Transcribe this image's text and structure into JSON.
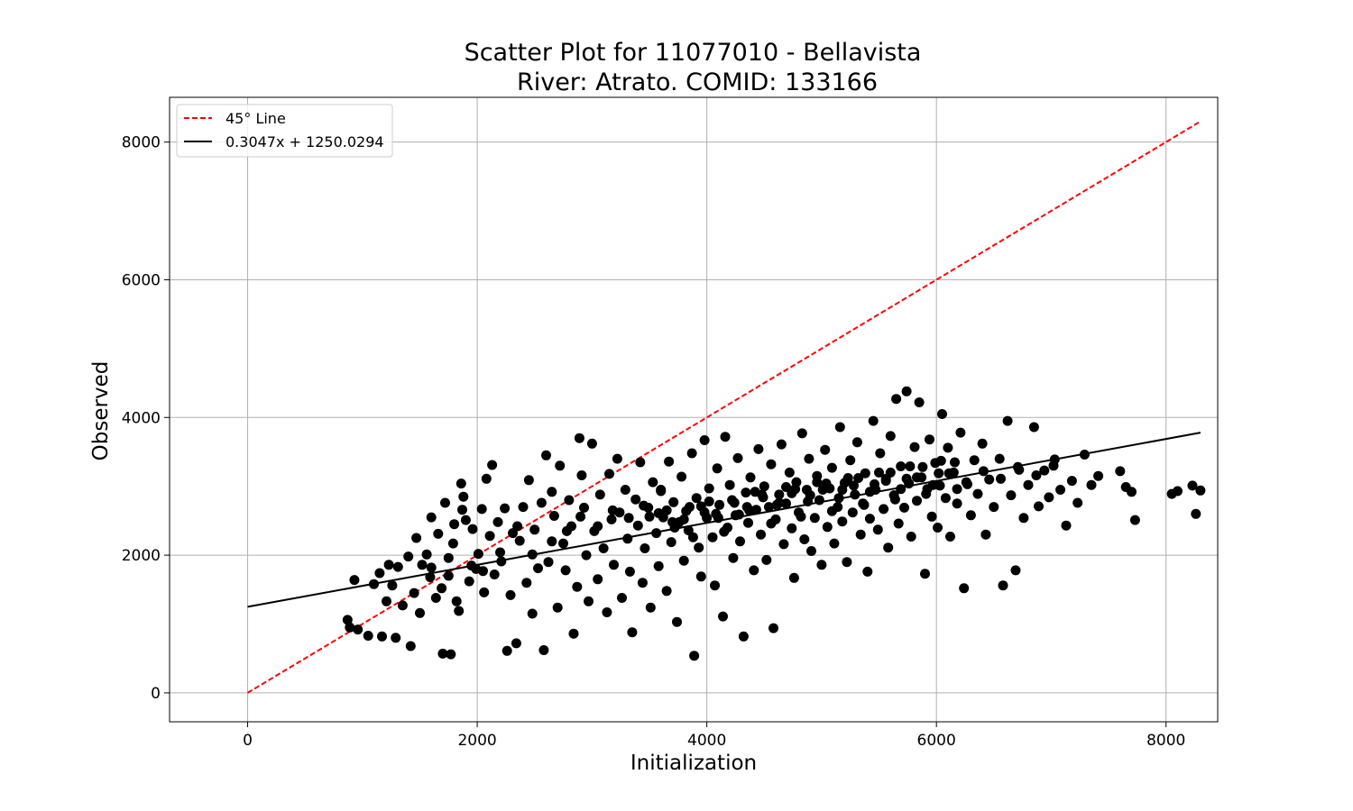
{
  "chart_data": {
    "type": "scatter",
    "title_line1": "Scatter Plot for 11077010 - Bellavista",
    "title_line2": "River: Atrato. COMID: 133166",
    "xlabel": "Initialization",
    "ylabel": "Observed",
    "xlim": [
      -680,
      8450
    ],
    "ylim": [
      -420,
      8650
    ],
    "xticks": [
      0,
      2000,
      4000,
      6000,
      8000
    ],
    "yticks": [
      0,
      2000,
      4000,
      6000,
      8000
    ],
    "xtick_labels": [
      "0",
      "2000",
      "4000",
      "6000",
      "8000"
    ],
    "ytick_labels": [
      "0",
      "2000",
      "4000",
      "6000",
      "8000"
    ],
    "grid": true,
    "legend_position": "top-left",
    "point_color": "#000000",
    "series": [
      {
        "name": "45° Line",
        "type": "line",
        "style": "dashed",
        "color": "#ff0000",
        "x": [
          0,
          8300
        ],
        "y": [
          0,
          8300
        ]
      },
      {
        "name": "0.3047x + 1250.0294",
        "type": "line",
        "style": "solid",
        "color": "#000000",
        "slope": 0.3047,
        "intercept": 1250.0294,
        "x": [
          0,
          8300
        ]
      }
    ],
    "points": [
      [
        870,
        1060
      ],
      [
        890,
        950
      ],
      [
        930,
        1640
      ],
      [
        960,
        920
      ],
      [
        1050,
        830
      ],
      [
        1100,
        1580
      ],
      [
        1150,
        1740
      ],
      [
        1170,
        820
      ],
      [
        1210,
        1330
      ],
      [
        1230,
        1860
      ],
      [
        1260,
        1560
      ],
      [
        1290,
        800
      ],
      [
        1310,
        1830
      ],
      [
        1350,
        1270
      ],
      [
        1400,
        1980
      ],
      [
        1420,
        680
      ],
      [
        1450,
        1450
      ],
      [
        1470,
        2250
      ],
      [
        1500,
        1160
      ],
      [
        1520,
        1860
      ],
      [
        1560,
        2010
      ],
      [
        1590,
        1680
      ],
      [
        1600,
        2550
      ],
      [
        1640,
        1380
      ],
      [
        1660,
        2310
      ],
      [
        1690,
        1520
      ],
      [
        1700,
        570
      ],
      [
        1720,
        2760
      ],
      [
        1750,
        1960
      ],
      [
        1770,
        560
      ],
      [
        1790,
        2170
      ],
      [
        1800,
        2450
      ],
      [
        1820,
        1330
      ],
      [
        1840,
        1190
      ],
      [
        1860,
        3040
      ],
      [
        1870,
        2660
      ],
      [
        1880,
        2850
      ],
      [
        1900,
        2510
      ],
      [
        1930,
        1620
      ],
      [
        1960,
        2380
      ],
      [
        1990,
        1800
      ],
      [
        2010,
        2020
      ],
      [
        2040,
        2670
      ],
      [
        2060,
        1460
      ],
      [
        2080,
        3110
      ],
      [
        2110,
        2280
      ],
      [
        2130,
        3310
      ],
      [
        2150,
        1720
      ],
      [
        2180,
        2480
      ],
      [
        2210,
        1910
      ],
      [
        2240,
        2680
      ],
      [
        2260,
        610
      ],
      [
        2290,
        1420
      ],
      [
        2310,
        2320
      ],
      [
        2340,
        720
      ],
      [
        2370,
        2210
      ],
      [
        2400,
        2700
      ],
      [
        2430,
        1600
      ],
      [
        2450,
        3090
      ],
      [
        2480,
        1150
      ],
      [
        2500,
        2370
      ],
      [
        2530,
        1810
      ],
      [
        2560,
        2760
      ],
      [
        2580,
        620
      ],
      [
        2600,
        3450
      ],
      [
        2620,
        1900
      ],
      [
        2650,
        2920
      ],
      [
        2670,
        2570
      ],
      [
        2700,
        1240
      ],
      [
        2720,
        3300
      ],
      [
        2750,
        2170
      ],
      [
        2770,
        1780
      ],
      [
        2800,
        2800
      ],
      [
        2820,
        2420
      ],
      [
        2840,
        860
      ],
      [
        2870,
        1540
      ],
      [
        2890,
        3700
      ],
      [
        2910,
        3160
      ],
      [
        2930,
        2690
      ],
      [
        2950,
        2000
      ],
      [
        2970,
        1330
      ],
      [
        3000,
        3620
      ],
      [
        3020,
        2350
      ],
      [
        3050,
        1650
      ],
      [
        3070,
        2880
      ],
      [
        3100,
        2100
      ],
      [
        3130,
        1170
      ],
      [
        3150,
        3180
      ],
      [
        3170,
        2520
      ],
      [
        3190,
        1860
      ],
      [
        3220,
        3400
      ],
      [
        3240,
        2620
      ],
      [
        3260,
        1380
      ],
      [
        3290,
        2950
      ],
      [
        3310,
        2240
      ],
      [
        3330,
        1760
      ],
      [
        3350,
        880
      ],
      [
        3380,
        2810
      ],
      [
        3400,
        2430
      ],
      [
        3420,
        3350
      ],
      [
        3440,
        1600
      ],
      [
        3460,
        2100
      ],
      [
        3490,
        2690
      ],
      [
        3510,
        1240
      ],
      [
        3530,
        3060
      ],
      [
        3560,
        2320
      ],
      [
        3580,
        1840
      ],
      [
        3600,
        2930
      ],
      [
        3620,
        2550
      ],
      [
        3650,
        1480
      ],
      [
        3670,
        3360
      ],
      [
        3690,
        2190
      ],
      [
        3710,
        2770
      ],
      [
        3740,
        1030
      ],
      [
        3760,
        2480
      ],
      [
        3780,
        3140
      ],
      [
        3800,
        1920
      ],
      [
        3820,
        2640
      ],
      [
        3840,
        2360
      ],
      [
        3870,
        3480
      ],
      [
        3890,
        540
      ],
      [
        3910,
        2830
      ],
      [
        3930,
        2110
      ],
      [
        3950,
        1690
      ],
      [
        3980,
        3670
      ],
      [
        4000,
        2540
      ],
      [
        4020,
        2970
      ],
      [
        4050,
        2260
      ],
      [
        4070,
        1560
      ],
      [
        4090,
        3260
      ],
      [
        4110,
        2730
      ],
      [
        4140,
        1110
      ],
      [
        4160,
        3720
      ],
      [
        4180,
        2400
      ],
      [
        4200,
        3020
      ],
      [
        4230,
        1960
      ],
      [
        4250,
        2580
      ],
      [
        4270,
        3410
      ],
      [
        4290,
        2200
      ],
      [
        4320,
        820
      ],
      [
        4340,
        2910
      ],
      [
        4360,
        2470
      ],
      [
        4380,
        3130
      ],
      [
        4410,
        1780
      ],
      [
        4430,
        2660
      ],
      [
        4450,
        3540
      ],
      [
        4470,
        2300
      ],
      [
        4500,
        3000
      ],
      [
        4520,
        1930
      ],
      [
        4540,
        2700
      ],
      [
        4560,
        3320
      ],
      [
        4580,
        940
      ],
      [
        4600,
        2520
      ],
      [
        4630,
        2880
      ],
      [
        4650,
        3610
      ],
      [
        4670,
        2160
      ],
      [
        4690,
        2750
      ],
      [
        4720,
        3200
      ],
      [
        4740,
        2390
      ],
      [
        4760,
        1670
      ],
      [
        4780,
        3060
      ],
      [
        4800,
        2620
      ],
      [
        4830,
        3770
      ],
      [
        4850,
        2230
      ],
      [
        4870,
        2950
      ],
      [
        4890,
        3400
      ],
      [
        4910,
        2060
      ],
      [
        4940,
        2540
      ],
      [
        4960,
        3150
      ],
      [
        4980,
        2800
      ],
      [
        5000,
        1860
      ],
      [
        5030,
        3530
      ],
      [
        5050,
        2410
      ],
      [
        5070,
        2970
      ],
      [
        5090,
        3270
      ],
      [
        5110,
        2170
      ],
      [
        5140,
        2700
      ],
      [
        5160,
        3860
      ],
      [
        5180,
        2490
      ],
      [
        5200,
        3050
      ],
      [
        5220,
        1900
      ],
      [
        5250,
        3380
      ],
      [
        5270,
        2620
      ],
      [
        5290,
        2880
      ],
      [
        5310,
        3640
      ],
      [
        5340,
        2300
      ],
      [
        5360,
        2750
      ],
      [
        5380,
        3190
      ],
      [
        5400,
        1760
      ],
      [
        5420,
        2530
      ],
      [
        5450,
        3950
      ],
      [
        5470,
        2950
      ],
      [
        5490,
        2370
      ],
      [
        5510,
        3480
      ],
      [
        5540,
        2670
      ],
      [
        5560,
        3110
      ],
      [
        5580,
        2110
      ],
      [
        5600,
        3730
      ],
      [
        5630,
        2870
      ],
      [
        5650,
        4270
      ],
      [
        5670,
        2460
      ],
      [
        5690,
        3290
      ],
      [
        5720,
        2690
      ],
      [
        5740,
        4380
      ],
      [
        5760,
        3040
      ],
      [
        5780,
        2270
      ],
      [
        5810,
        3570
      ],
      [
        5830,
        2790
      ],
      [
        5850,
        4220
      ],
      [
        5870,
        3130
      ],
      [
        5900,
        1730
      ],
      [
        5920,
        2960
      ],
      [
        5940,
        3680
      ],
      [
        5960,
        2560
      ],
      [
        5990,
        3340
      ],
      [
        6010,
        2400
      ],
      [
        6030,
        3010
      ],
      [
        6050,
        4050
      ],
      [
        6080,
        2830
      ],
      [
        6100,
        3560
      ],
      [
        6120,
        2270
      ],
      [
        6150,
        3200
      ],
      [
        6180,
        2750
      ],
      [
        6210,
        3780
      ],
      [
        6240,
        1520
      ],
      [
        6270,
        3030
      ],
      [
        6300,
        2580
      ],
      [
        6330,
        3380
      ],
      [
        6360,
        2890
      ],
      [
        6400,
        3620
      ],
      [
        6430,
        2300
      ],
      [
        6460,
        3100
      ],
      [
        6500,
        2700
      ],
      [
        6550,
        3400
      ],
      [
        6580,
        1560
      ],
      [
        6620,
        3950
      ],
      [
        6650,
        2870
      ],
      [
        6690,
        1780
      ],
      [
        6720,
        3240
      ],
      [
        6760,
        2540
      ],
      [
        6800,
        3020
      ],
      [
        6850,
        3860
      ],
      [
        6890,
        2710
      ],
      [
        6940,
        3230
      ],
      [
        6980,
        2840
      ],
      [
        7030,
        3390
      ],
      [
        7080,
        2950
      ],
      [
        7130,
        2430
      ],
      [
        7180,
        3080
      ],
      [
        7230,
        2760
      ],
      [
        7290,
        3460
      ],
      [
        7350,
        3020
      ],
      [
        7410,
        3150
      ],
      [
        7600,
        3220
      ],
      [
        7650,
        2990
      ],
      [
        7700,
        2920
      ],
      [
        7730,
        2510
      ],
      [
        8050,
        2890
      ],
      [
        8100,
        2930
      ],
      [
        8230,
        3010
      ],
      [
        8260,
        2600
      ],
      [
        8300,
        2940
      ],
      [
        1600,
        1820
      ],
      [
        1750,
        1700
      ],
      [
        1950,
        1850
      ],
      [
        2050,
        1770
      ],
      [
        2200,
        2040
      ],
      [
        2350,
        2420
      ],
      [
        2480,
        2010
      ],
      [
        2650,
        2200
      ],
      [
        2780,
        2350
      ],
      [
        2900,
        2560
      ],
      [
        3050,
        2420
      ],
      [
        3180,
        2650
      ],
      [
        3320,
        2540
      ],
      [
        3450,
        2720
      ],
      [
        3580,
        2610
      ],
      [
        3700,
        2480
      ],
      [
        3850,
        2700
      ],
      [
        3980,
        2620
      ],
      [
        4100,
        2540
      ],
      [
        4240,
        2760
      ],
      [
        4370,
        2650
      ],
      [
        4490,
        2840
      ],
      [
        4610,
        2730
      ],
      [
        4740,
        2900
      ],
      [
        4880,
        2780
      ],
      [
        5010,
        2950
      ],
      [
        5150,
        2830
      ],
      [
        5280,
        3010
      ],
      [
        5420,
        2920
      ],
      [
        5560,
        3080
      ],
      [
        5690,
        2960
      ],
      [
        5830,
        3130
      ],
      [
        5970,
        3020
      ],
      [
        6110,
        3190
      ],
      [
        6260,
        3060
      ],
      [
        6410,
        3220
      ],
      [
        6560,
        3110
      ],
      [
        6710,
        3280
      ],
      [
        6870,
        3160
      ],
      [
        7020,
        3300
      ],
      [
        3600,
        2950
      ],
      [
        3720,
        2400
      ],
      [
        3880,
        2260
      ],
      [
        4020,
        2780
      ],
      [
        4150,
        2340
      ],
      [
        4280,
        2590
      ],
      [
        4420,
        2920
      ],
      [
        4560,
        2460
      ],
      [
        4690,
        2990
      ],
      [
        4820,
        2560
      ],
      [
        4960,
        3060
      ],
      [
        5090,
        2640
      ],
      [
        5230,
        3120
      ],
      [
        5370,
        2730
      ],
      [
        5500,
        3200
      ],
      [
        5640,
        2810
      ],
      [
        5770,
        3290
      ],
      [
        5910,
        2890
      ],
      [
        6040,
        3370
      ],
      [
        6180,
        2960
      ],
      [
        3500,
        2560
      ],
      [
        3650,
        2650
      ],
      [
        3800,
        2520
      ],
      [
        3950,
        2710
      ],
      [
        4080,
        2600
      ],
      [
        4220,
        2800
      ],
      [
        4350,
        2700
      ],
      [
        4480,
        2880
      ],
      [
        4630,
        2760
      ],
      [
        4770,
        2960
      ],
      [
        4900,
        2870
      ],
      [
        5040,
        3040
      ],
      [
        5180,
        2950
      ],
      [
        5320,
        3120
      ],
      [
        5460,
        3030
      ],
      [
        5600,
        3200
      ],
      [
        5740,
        3110
      ],
      [
        5880,
        3280
      ],
      [
        6020,
        3190
      ],
      [
        6160,
        3350
      ]
    ]
  }
}
